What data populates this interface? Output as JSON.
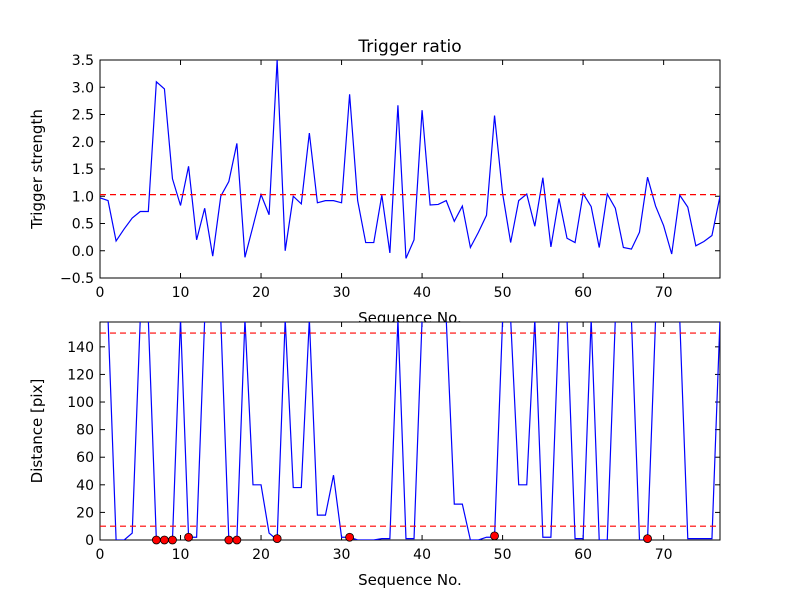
{
  "colors": {
    "line": "#0000ff",
    "threshold": "#ff0000",
    "marker": "#ff0000"
  },
  "chart_data": [
    {
      "type": "line",
      "title": "Trigger ratio",
      "xlabel": "Sequence No.",
      "ylabel": "Trigger strength",
      "xlim": [
        0,
        77
      ],
      "ylim": [
        -0.5,
        3.5
      ],
      "xticks": [
        "0",
        "10",
        "20",
        "30",
        "40",
        "50",
        "60",
        "70"
      ],
      "yticks": [
        "−0.5",
        "0.0",
        "0.5",
        "1.0",
        "1.5",
        "2.0",
        "2.5",
        "3.0",
        "3.5"
      ],
      "threshold": 1.03,
      "x": [
        0,
        1,
        2,
        3,
        4,
        5,
        6,
        7,
        8,
        9,
        10,
        11,
        12,
        13,
        14,
        15,
        16,
        17,
        18,
        19,
        20,
        21,
        22,
        23,
        24,
        25,
        26,
        27,
        28,
        29,
        30,
        31,
        32,
        33,
        34,
        35,
        36,
        37,
        38,
        39,
        40,
        41,
        42,
        43,
        44,
        45,
        46,
        47,
        48,
        49,
        50,
        51,
        52,
        53,
        54,
        55,
        56,
        57,
        58,
        59,
        60,
        61,
        62,
        63,
        64,
        65,
        66,
        67,
        68,
        69,
        70,
        71,
        72,
        73,
        74,
        75,
        76,
        77
      ],
      "y": [
        0.97,
        0.92,
        0.18,
        0.4,
        0.6,
        0.72,
        0.72,
        3.1,
        2.97,
        1.32,
        0.83,
        1.55,
        0.2,
        0.78,
        -0.1,
        1.0,
        1.27,
        1.97,
        -0.12,
        0.45,
        1.03,
        0.66,
        3.5,
        0.0,
        1.0,
        0.86,
        2.16,
        0.88,
        0.92,
        0.92,
        0.88,
        2.87,
        0.92,
        0.15,
        0.15,
        1.02,
        -0.04,
        2.67,
        -0.14,
        0.2,
        2.58,
        0.84,
        0.85,
        0.92,
        0.54,
        0.82,
        0.06,
        0.34,
        0.65,
        2.48,
        1.05,
        0.15,
        0.92,
        1.04,
        0.45,
        1.34,
        0.07,
        0.96,
        0.23,
        0.15,
        1.05,
        0.81,
        0.06,
        1.04,
        0.78,
        0.06,
        0.03,
        0.34,
        1.35,
        0.82,
        0.46,
        -0.06,
        1.02,
        0.8,
        0.09,
        0.17,
        0.28,
        1.0
      ]
    },
    {
      "type": "line",
      "title": "",
      "xlabel": "Sequence No.",
      "ylabel": "Distance [pix]",
      "xlim": [
        0,
        77
      ],
      "ylim": [
        0,
        158
      ],
      "xticks": [
        "0",
        "10",
        "20",
        "30",
        "40",
        "50",
        "60",
        "70"
      ],
      "yticks": [
        "0",
        "20",
        "40",
        "60",
        "80",
        "100",
        "120",
        "140"
      ],
      "thresholds": [
        10,
        150
      ],
      "x": [
        0,
        1,
        2,
        3,
        4,
        5,
        6,
        7,
        8,
        9,
        10,
        11,
        12,
        13,
        14,
        15,
        16,
        17,
        18,
        19,
        20,
        21,
        22,
        23,
        24,
        25,
        26,
        27,
        28,
        29,
        30,
        31,
        32,
        33,
        34,
        35,
        36,
        37,
        38,
        39,
        40,
        41,
        42,
        43,
        44,
        45,
        46,
        47,
        48,
        49,
        50,
        51,
        52,
        53,
        54,
        55,
        56,
        57,
        58,
        59,
        60,
        61,
        62,
        63,
        64,
        65,
        66,
        67,
        68,
        69,
        70,
        71,
        72,
        73,
        74,
        75,
        76,
        77
      ],
      "y": [
        160,
        160,
        0,
        0,
        5,
        160,
        160,
        0,
        0,
        0,
        160,
        2,
        2,
        160,
        160,
        160,
        0,
        0,
        160,
        40,
        40,
        5,
        0,
        160,
        38,
        38,
        160,
        18,
        18,
        47,
        2,
        2,
        0,
        0,
        0,
        1,
        1,
        160,
        1,
        1,
        160,
        160,
        160,
        160,
        26,
        26,
        0,
        0,
        2,
        2,
        160,
        160,
        40,
        40,
        160,
        2,
        2,
        160,
        160,
        1,
        1,
        160,
        0,
        0,
        160,
        160,
        160,
        0,
        0,
        160,
        160,
        160,
        160,
        1,
        1,
        1,
        1,
        160
      ],
      "markers": {
        "x": [
          7,
          8,
          9,
          11,
          16,
          17,
          22,
          31,
          49,
          68
        ],
        "y": [
          0,
          0,
          0,
          2,
          0,
          0,
          1,
          2,
          3,
          1
        ]
      }
    }
  ]
}
